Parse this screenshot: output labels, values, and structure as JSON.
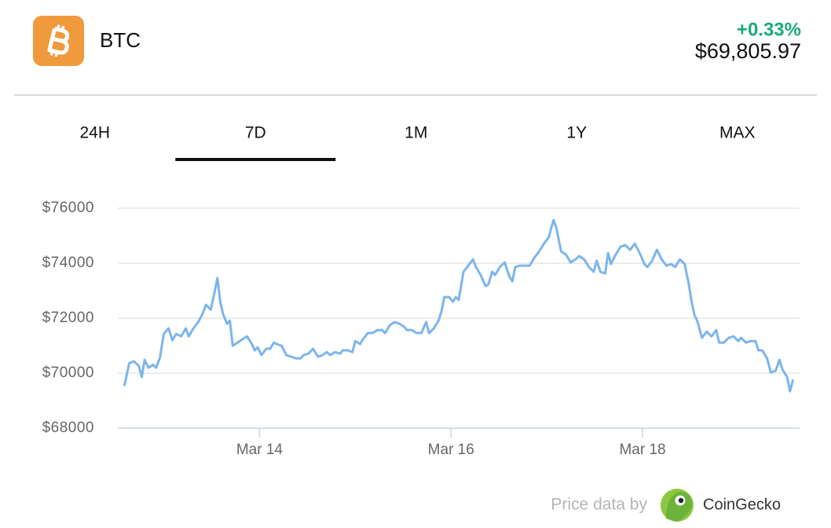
{
  "header": {
    "symbol": "BTC",
    "change": "+0.33%",
    "price": "$69,805.97"
  },
  "tabs": [
    "24H",
    "7D",
    "1M",
    "1Y",
    "MAX"
  ],
  "selected_tab": 1,
  "footer": {
    "credit": "Price data by",
    "source": "CoinGecko"
  },
  "chart_data": {
    "type": "line",
    "color": "#7cb5ec",
    "x": [
      12.59,
      12.64,
      12.69,
      12.74,
      12.77,
      12.8,
      12.84,
      12.89,
      12.92,
      12.96,
      13.0,
      13.05,
      13.09,
      13.13,
      13.18,
      13.23,
      13.26,
      13.31,
      13.36,
      13.41,
      13.44,
      13.49,
      13.52,
      13.56,
      13.59,
      13.62,
      13.66,
      13.69,
      13.72,
      13.77,
      13.82,
      13.87,
      13.92,
      13.95,
      13.98,
      14.02,
      14.07,
      14.11,
      14.15,
      14.18,
      14.23,
      14.28,
      14.33,
      14.38,
      14.43,
      14.46,
      14.51,
      14.56,
      14.61,
      14.66,
      14.7,
      14.74,
      14.79,
      14.84,
      14.87,
      14.92,
      14.97,
      15.0,
      15.05,
      15.08,
      15.13,
      15.18,
      15.23,
      15.28,
      15.31,
      15.36,
      15.41,
      15.46,
      15.51,
      15.54,
      15.59,
      15.64,
      15.69,
      15.74,
      15.77,
      15.82,
      15.87,
      15.9,
      15.93,
      15.98,
      16.02,
      16.05,
      16.08,
      16.13,
      16.18,
      16.23,
      16.26,
      16.31,
      16.36,
      16.39,
      16.43,
      16.46,
      16.51,
      16.56,
      16.61,
      16.64,
      16.67,
      16.72,
      16.77,
      16.82,
      16.87,
      16.92,
      16.97,
      17.02,
      17.07,
      17.1,
      17.15,
      17.2,
      17.25,
      17.3,
      17.34,
      17.39,
      17.44,
      17.49,
      17.52,
      17.56,
      17.61,
      17.64,
      17.67,
      17.72,
      17.77,
      17.82,
      17.87,
      17.92,
      17.97,
      18.02,
      18.05,
      18.1,
      18.15,
      18.2,
      18.25,
      18.3,
      18.34,
      18.39,
      18.44,
      18.48,
      18.51,
      18.54,
      18.57,
      18.62,
      18.67,
      18.72,
      18.77,
      18.8,
      18.85,
      18.9,
      18.95,
      19.0,
      19.03,
      19.08,
      19.13,
      19.18,
      19.21,
      19.25,
      19.3,
      19.34,
      19.39,
      19.43,
      19.46,
      19.51,
      19.54,
      19.57
    ],
    "values": [
      69570,
      70370,
      70430,
      70260,
      69860,
      70490,
      70200,
      70310,
      70200,
      70570,
      71430,
      71630,
      71200,
      71430,
      71340,
      71630,
      71340,
      71630,
      71860,
      72200,
      72490,
      72310,
      72770,
      73460,
      72600,
      72140,
      71800,
      71910,
      71000,
      71110,
      71230,
      71340,
      71060,
      70830,
      70940,
      70660,
      70890,
      70890,
      71110,
      71060,
      71000,
      70660,
      70600,
      70540,
      70540,
      70660,
      70710,
      70890,
      70600,
      70660,
      70770,
      70660,
      70770,
      70710,
      70830,
      70830,
      70770,
      71170,
      71060,
      71230,
      71460,
      71460,
      71570,
      71570,
      71460,
      71740,
      71860,
      71800,
      71690,
      71570,
      71570,
      71460,
      71460,
      71860,
      71460,
      71630,
      71910,
      72260,
      72770,
      72770,
      72600,
      72770,
      72660,
      73690,
      73910,
      74140,
      73860,
      73570,
      73170,
      73230,
      73690,
      73570,
      73860,
      74030,
      73510,
      73340,
      73860,
      73910,
      73910,
      73910,
      74200,
      74430,
      74710,
      74940,
      75570,
      75290,
      74430,
      74310,
      74030,
      74140,
      74260,
      74140,
      73860,
      73690,
      74090,
      73690,
      73630,
      74370,
      73970,
      74310,
      74600,
      74660,
      74490,
      74710,
      74370,
      73970,
      73860,
      74090,
      74490,
      74140,
      73910,
      73970,
      73860,
      74140,
      73970,
      73290,
      72660,
      72140,
      71910,
      71290,
      71510,
      71340,
      71570,
      71110,
      71110,
      71290,
      71340,
      71170,
      71290,
      71110,
      71170,
      71170,
      70830,
      70830,
      70540,
      70030,
      70090,
      70490,
      70140,
      69860,
      69340,
      69740
    ],
    "xlim": [
      12.52,
      19.64
    ],
    "xticks": [
      {
        "value": 14,
        "label": "Mar 14"
      },
      {
        "value": 16,
        "label": "Mar 16"
      },
      {
        "value": 18,
        "label": "Mar 18"
      }
    ],
    "ylim": [
      68000,
      76000
    ],
    "yticks": [
      {
        "value": 68000,
        "label": "$68000"
      },
      {
        "value": 70000,
        "label": "$70000"
      },
      {
        "value": 72000,
        "label": "$72000"
      },
      {
        "value": 74000,
        "label": "$74000"
      },
      {
        "value": 76000,
        "label": "$76000"
      }
    ],
    "grid": true
  }
}
